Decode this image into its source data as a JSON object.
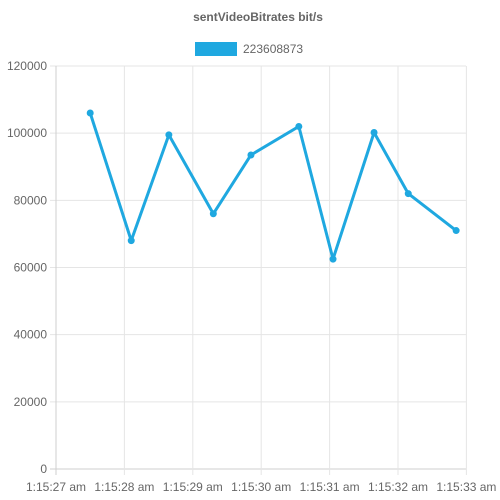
{
  "chart_data": {
    "type": "line",
    "title": "sentVideoBitrates bit/s",
    "x": [
      "1:15:27.50",
      "1:15:28.10",
      "1:15:28.65",
      "1:15:29.30",
      "1:15:29.85",
      "1:15:30.55",
      "1:15:31.05",
      "1:15:31.65",
      "1:15:32.15",
      "1:15:32.85"
    ],
    "x_ticks": [
      "1:15:27 am",
      "1:15:28 am",
      "1:15:29 am",
      "1:15:30 am",
      "1:15:31 am",
      "1:15:32 am",
      "1:15:33 am"
    ],
    "y_ticks": [
      "0",
      "20000",
      "40000",
      "60000",
      "80000",
      "100000",
      "120000"
    ],
    "series": [
      {
        "name": "223608873",
        "values": [
          106000,
          68000,
          99500,
          76000,
          93500,
          102000,
          62500,
          100200,
          82000,
          71000
        ]
      }
    ],
    "ylim": [
      0,
      120000
    ],
    "xlim": [
      "1:15:27 am",
      "1:15:33 am"
    ],
    "grid": true,
    "legend_position": "top",
    "colors": {
      "series": "#1fa8e0",
      "grid": "#e5e5e5",
      "text": "#666666"
    }
  }
}
